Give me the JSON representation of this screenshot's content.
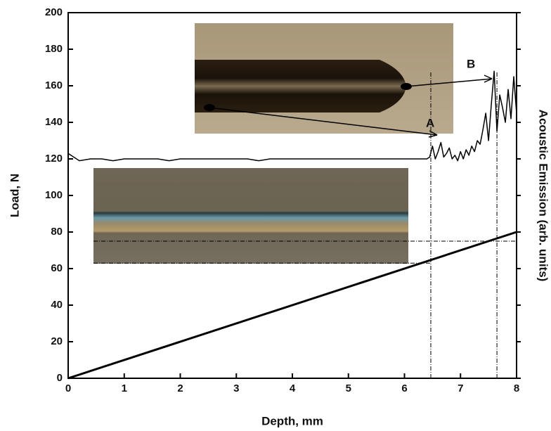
{
  "chart_data": {
    "type": "line",
    "xlabel": "Depth, mm",
    "ylabel": "Load, N",
    "y2label": "Acoustic Emission (arb. units)",
    "xlim": [
      0,
      8
    ],
    "ylim": [
      0,
      200
    ],
    "xticks": [
      0,
      1,
      2,
      3,
      4,
      5,
      6,
      7,
      8
    ],
    "yticks": [
      0,
      20,
      40,
      60,
      80,
      100,
      120,
      140,
      160,
      180,
      200
    ],
    "series": [
      {
        "color": "#000000",
        "x": [
          0,
          8
        ],
        "values": [
          0,
          80
        ]
      },
      {
        "color": "#000000",
        "x": [
          0,
          0.2,
          0.4,
          0.6,
          0.8,
          1,
          1.2,
          1.4,
          1.6,
          1.8,
          2,
          2.2,
          2.4,
          2.6,
          2.8,
          3,
          3.2,
          3.4,
          3.6,
          3.8,
          4,
          4.2,
          4.4,
          4.6,
          4.8,
          5,
          5.2,
          5.4,
          5.6,
          5.8,
          6,
          6.2,
          6.4,
          6.45,
          6.5,
          6.55,
          6.6,
          6.65,
          6.7,
          6.75,
          6.8,
          6.85,
          6.9,
          6.95,
          7,
          7.05,
          7.1,
          7.15,
          7.2,
          7.25,
          7.3,
          7.35,
          7.4,
          7.45,
          7.5,
          7.55,
          7.6,
          7.65,
          7.7,
          7.75,
          7.8,
          7.85,
          7.9,
          7.95,
          8
        ],
        "values": [
          123,
          119,
          120,
          120,
          119,
          120,
          120,
          120,
          120,
          119,
          120,
          120,
          120,
          120,
          120,
          120,
          120,
          119,
          120,
          120,
          120,
          120,
          120,
          120,
          120,
          120,
          120,
          120,
          120,
          120,
          120,
          120,
          120,
          121,
          127,
          120,
          124,
          129,
          121,
          123,
          126,
          120,
          122,
          119,
          124,
          120,
          125,
          122,
          127,
          124,
          130,
          128,
          136,
          145,
          130,
          150,
          168,
          135,
          155,
          148,
          140,
          158,
          142,
          165,
          145
        ]
      }
    ],
    "vlines": [
      6.47,
      7.65
    ],
    "hlines": [
      {
        "y": 75,
        "x_end": 8
      },
      {
        "y": 63,
        "x_end": 6.47
      }
    ],
    "annotations": [
      "A",
      "B"
    ]
  }
}
